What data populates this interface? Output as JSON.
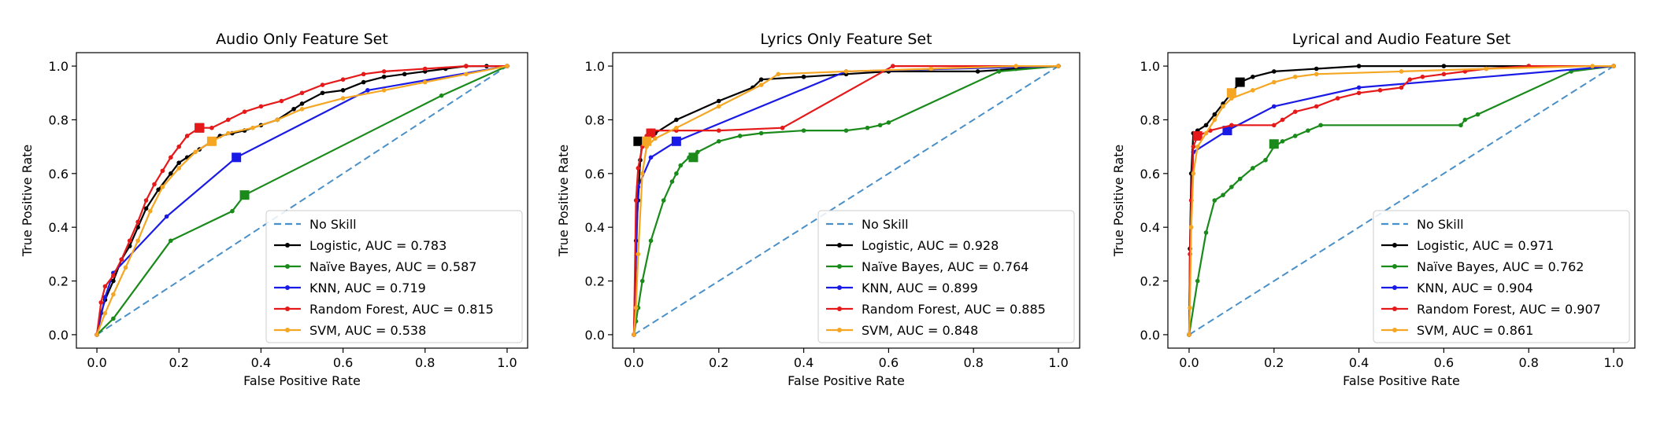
{
  "colors": {
    "no_skill": "#4a90c8",
    "logistic": "#000000",
    "naive_bayes": "#1a8a1a",
    "knn": "#1a1ae6",
    "random_forest": "#e51919",
    "svm": "#f5a623"
  },
  "chart_data": [
    {
      "type": "line",
      "title": "Audio Only Feature Set",
      "xlabel": "False Positive Rate",
      "ylabel": "True Positive Rate",
      "xlim": [
        -0.05,
        1.05
      ],
      "ylim": [
        -0.05,
        1.05
      ],
      "xticks": [
        "0.0",
        "0.2",
        "0.4",
        "0.6",
        "0.8",
        "1.0"
      ],
      "yticks": [
        "0.0",
        "0.2",
        "0.4",
        "0.6",
        "0.8",
        "1.0"
      ],
      "legend_position": "lower-right",
      "grid": false,
      "series": [
        {
          "name": "No Skill",
          "key": "no_skill",
          "dashed": true,
          "x": [
            0,
            1
          ],
          "y": [
            0,
            1
          ]
        },
        {
          "name": "Logistic, AUC = 0.783",
          "key": "logistic",
          "x": [
            0,
            0.01,
            0.02,
            0.04,
            0.06,
            0.08,
            0.1,
            0.12,
            0.15,
            0.18,
            0.2,
            0.22,
            0.25,
            0.28,
            0.3,
            0.33,
            0.36,
            0.4,
            0.44,
            0.48,
            0.5,
            0.55,
            0.6,
            0.65,
            0.7,
            0.75,
            0.8,
            0.85,
            0.9,
            0.95,
            1.0
          ],
          "y": [
            0,
            0.08,
            0.13,
            0.2,
            0.28,
            0.33,
            0.4,
            0.47,
            0.54,
            0.6,
            0.64,
            0.66,
            0.69,
            0.72,
            0.74,
            0.75,
            0.76,
            0.78,
            0.8,
            0.84,
            0.86,
            0.9,
            0.91,
            0.94,
            0.96,
            0.97,
            0.98,
            0.99,
            1.0,
            1.0,
            1.0
          ],
          "marker": [
            0.25,
            0.77
          ]
        },
        {
          "name": "Naïve Bayes, AUC = 0.587",
          "key": "naive_bayes",
          "x": [
            0,
            0.04,
            0.18,
            0.33,
            0.36,
            0.84,
            1.0
          ],
          "y": [
            0,
            0.06,
            0.35,
            0.46,
            0.52,
            0.89,
            1.0
          ],
          "marker": [
            0.36,
            0.52
          ]
        },
        {
          "name": "KNN, AUC = 0.719",
          "key": "knn",
          "x": [
            0,
            0.02,
            0.04,
            0.17,
            0.34,
            0.66,
            1.0
          ],
          "y": [
            0,
            0.14,
            0.23,
            0.44,
            0.66,
            0.91,
            1.0
          ],
          "marker": [
            0.34,
            0.66
          ]
        },
        {
          "name": "Random Forest, AUC = 0.815",
          "key": "random_forest",
          "x": [
            0,
            0.01,
            0.02,
            0.04,
            0.06,
            0.08,
            0.1,
            0.12,
            0.14,
            0.16,
            0.18,
            0.2,
            0.22,
            0.25,
            0.28,
            0.32,
            0.36,
            0.4,
            0.45,
            0.5,
            0.55,
            0.6,
            0.65,
            0.7,
            0.8,
            0.9,
            1.0
          ],
          "y": [
            0,
            0.12,
            0.18,
            0.22,
            0.28,
            0.35,
            0.42,
            0.5,
            0.56,
            0.61,
            0.66,
            0.7,
            0.74,
            0.77,
            0.77,
            0.8,
            0.83,
            0.85,
            0.87,
            0.9,
            0.93,
            0.95,
            0.97,
            0.98,
            0.99,
            1.0,
            1.0
          ],
          "marker": [
            0.25,
            0.77
          ]
        },
        {
          "name": "SVM, AUC = 0.538",
          "key": "svm",
          "x": [
            0,
            0.02,
            0.04,
            0.07,
            0.1,
            0.13,
            0.16,
            0.2,
            0.24,
            0.28,
            0.32,
            0.38,
            0.44,
            0.5,
            0.6,
            0.7,
            0.8,
            0.9,
            1.0
          ],
          "y": [
            0,
            0.08,
            0.15,
            0.25,
            0.35,
            0.46,
            0.55,
            0.62,
            0.68,
            0.72,
            0.75,
            0.77,
            0.8,
            0.84,
            0.88,
            0.91,
            0.94,
            0.97,
            1.0
          ],
          "marker": [
            0.28,
            0.72
          ]
        }
      ]
    },
    {
      "type": "line",
      "title": "Lyrics Only Feature Set",
      "xlabel": "False Positive Rate",
      "ylabel": "True Positive Rate",
      "xlim": [
        -0.05,
        1.05
      ],
      "ylim": [
        -0.05,
        1.05
      ],
      "xticks": [
        "0.0",
        "0.2",
        "0.4",
        "0.6",
        "0.8",
        "1.0"
      ],
      "yticks": [
        "0.0",
        "0.2",
        "0.4",
        "0.6",
        "0.8",
        "1.0"
      ],
      "legend_position": "lower-right",
      "grid": false,
      "series": [
        {
          "name": "No Skill",
          "key": "no_skill",
          "dashed": true,
          "x": [
            0,
            1
          ],
          "y": [
            0,
            1
          ]
        },
        {
          "name": "Logistic, AUC = 0.928",
          "key": "logistic",
          "x": [
            0,
            0.005,
            0.01,
            0.015,
            0.02,
            0.03,
            0.05,
            0.1,
            0.2,
            0.28,
            0.3,
            0.4,
            0.5,
            0.6,
            0.81,
            0.9,
            1.0
          ],
          "y": [
            0,
            0.35,
            0.5,
            0.65,
            0.72,
            0.73,
            0.75,
            0.8,
            0.87,
            0.92,
            0.95,
            0.96,
            0.97,
            0.98,
            0.98,
            0.99,
            1.0
          ],
          "marker": [
            0.01,
            0.72
          ]
        },
        {
          "name": "Naïve Bayes, AUC = 0.764",
          "key": "naive_bayes",
          "x": [
            0,
            0.005,
            0.01,
            0.02,
            0.04,
            0.07,
            0.09,
            0.1,
            0.11,
            0.13,
            0.15,
            0.2,
            0.25,
            0.3,
            0.4,
            0.5,
            0.55,
            0.58,
            0.6,
            0.86,
            1.0
          ],
          "y": [
            0,
            0.05,
            0.1,
            0.2,
            0.35,
            0.5,
            0.57,
            0.6,
            0.63,
            0.66,
            0.68,
            0.72,
            0.74,
            0.75,
            0.76,
            0.76,
            0.77,
            0.78,
            0.79,
            0.98,
            1.0
          ],
          "marker": [
            0.14,
            0.66
          ]
        },
        {
          "name": "KNN, AUC = 0.899",
          "key": "knn",
          "x": [
            0,
            0.01,
            0.04,
            0.1,
            0.5,
            1.0
          ],
          "y": [
            0,
            0.55,
            0.66,
            0.72,
            0.98,
            1.0
          ],
          "marker": [
            0.1,
            0.72
          ]
        },
        {
          "name": "Random Forest, AUC = 0.885",
          "key": "random_forest",
          "x": [
            0,
            0.005,
            0.01,
            0.02,
            0.03,
            0.04,
            0.1,
            0.2,
            0.35,
            0.61,
            1.0
          ],
          "y": [
            0,
            0.5,
            0.62,
            0.7,
            0.74,
            0.76,
            0.76,
            0.76,
            0.77,
            1.0,
            1.0
          ],
          "marker": [
            0.04,
            0.75
          ]
        },
        {
          "name": "SVM, AUC = 0.848",
          "key": "svm",
          "x": [
            0,
            0.005,
            0.01,
            0.02,
            0.03,
            0.05,
            0.1,
            0.2,
            0.3,
            0.34,
            0.5,
            0.7,
            0.9,
            1.0
          ],
          "y": [
            0,
            0.1,
            0.3,
            0.6,
            0.7,
            0.73,
            0.77,
            0.85,
            0.93,
            0.97,
            0.98,
            0.99,
            1.0,
            1.0
          ],
          "marker": [
            0.03,
            0.72
          ]
        }
      ]
    },
    {
      "type": "line",
      "title": "Lyrical and Audio Feature Set",
      "xlabel": "False Positive Rate",
      "ylabel": "True Positive Rate",
      "xlim": [
        -0.05,
        1.05
      ],
      "ylim": [
        -0.05,
        1.05
      ],
      "xticks": [
        "0.0",
        "0.2",
        "0.4",
        "0.6",
        "0.8",
        "1.0"
      ],
      "yticks": [
        "0.0",
        "0.2",
        "0.4",
        "0.6",
        "0.8",
        "1.0"
      ],
      "legend_position": "lower-right",
      "grid": false,
      "series": [
        {
          "name": "No Skill",
          "key": "no_skill",
          "dashed": true,
          "x": [
            0,
            1
          ],
          "y": [
            0,
            1
          ]
        },
        {
          "name": "Logistic, AUC = 0.971",
          "key": "logistic",
          "x": [
            0,
            0.002,
            0.005,
            0.01,
            0.02,
            0.04,
            0.06,
            0.08,
            0.1,
            0.12,
            0.15,
            0.2,
            0.3,
            0.4,
            0.6,
            0.8,
            1.0
          ],
          "y": [
            0,
            0.32,
            0.6,
            0.75,
            0.76,
            0.78,
            0.82,
            0.86,
            0.9,
            0.94,
            0.96,
            0.98,
            0.99,
            1.0,
            1.0,
            1.0,
            1.0
          ],
          "marker": [
            0.12,
            0.94
          ]
        },
        {
          "name": "Naïve Bayes, AUC = 0.762",
          "key": "naive_bayes",
          "x": [
            0,
            0.02,
            0.04,
            0.06,
            0.08,
            0.1,
            0.12,
            0.15,
            0.18,
            0.2,
            0.22,
            0.25,
            0.28,
            0.31,
            0.64,
            0.65,
            0.68,
            0.9,
            1.0
          ],
          "y": [
            0,
            0.2,
            0.38,
            0.5,
            0.52,
            0.55,
            0.58,
            0.62,
            0.65,
            0.7,
            0.72,
            0.74,
            0.76,
            0.78,
            0.78,
            0.8,
            0.82,
            0.98,
            1.0
          ],
          "marker": [
            0.2,
            0.71
          ]
        },
        {
          "name": "KNN, AUC = 0.904",
          "key": "knn",
          "x": [
            0,
            0.005,
            0.01,
            0.09,
            0.2,
            0.4,
            1.0
          ],
          "y": [
            0,
            0.5,
            0.68,
            0.76,
            0.85,
            0.92,
            1.0
          ],
          "marker": [
            0.09,
            0.76
          ]
        },
        {
          "name": "Random Forest, AUC = 0.907",
          "key": "random_forest",
          "x": [
            0,
            0.002,
            0.005,
            0.01,
            0.02,
            0.05,
            0.1,
            0.2,
            0.22,
            0.25,
            0.3,
            0.35,
            0.4,
            0.45,
            0.5,
            0.52,
            0.55,
            0.6,
            0.65,
            0.7,
            0.8,
            1.0
          ],
          "y": [
            0,
            0.3,
            0.5,
            0.7,
            0.74,
            0.76,
            0.78,
            0.78,
            0.8,
            0.83,
            0.85,
            0.88,
            0.9,
            0.91,
            0.92,
            0.95,
            0.96,
            0.97,
            0.98,
            0.99,
            1.0,
            1.0
          ],
          "marker": [
            0.02,
            0.74
          ]
        },
        {
          "name": "SVM, AUC = 0.861",
          "key": "svm",
          "x": [
            0,
            0.002,
            0.005,
            0.01,
            0.02,
            0.04,
            0.06,
            0.08,
            0.1,
            0.15,
            0.2,
            0.25,
            0.3,
            0.5,
            0.7,
            0.95,
            1.0
          ],
          "y": [
            0,
            0.1,
            0.4,
            0.6,
            0.7,
            0.75,
            0.8,
            0.85,
            0.88,
            0.91,
            0.94,
            0.96,
            0.97,
            0.98,
            0.99,
            1.0,
            1.0
          ],
          "marker": [
            0.1,
            0.9
          ]
        }
      ]
    }
  ]
}
